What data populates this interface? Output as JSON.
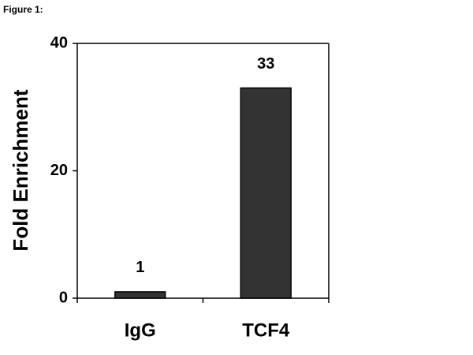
{
  "chart_data": {
    "type": "bar",
    "title": "Figure 1:",
    "y_label": "Fold Enrichment",
    "categories": [
      "IgG",
      "TCF4"
    ],
    "values": [
      1,
      33
    ],
    "color": "#333333",
    "ylim": [
      0,
      40
    ],
    "yticks": [
      0,
      20,
      40
    ],
    "grid": false
  }
}
